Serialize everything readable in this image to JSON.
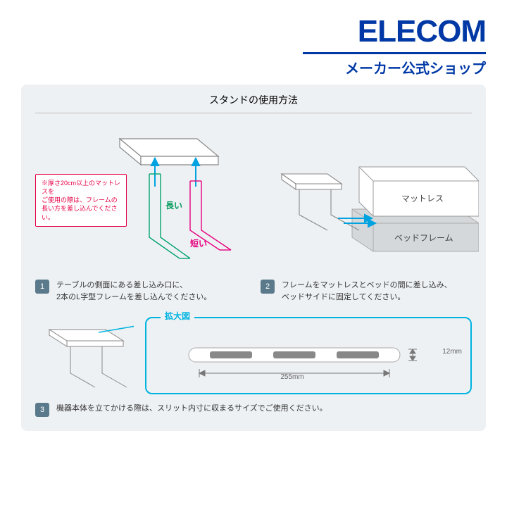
{
  "brand": {
    "name": "ELECOM",
    "tagline": "メーカー公式ショップ",
    "color": "#0039a6"
  },
  "panel": {
    "title": "スタンドの使用方法",
    "bg": "#eef1f4"
  },
  "step1": {
    "num": "1",
    "text": "テーブルの側面にある差し込み口に、\n2本のL字型フレームを差し込んでください。",
    "label_long": "長い",
    "label_long_color": "#009b5a",
    "label_short": "短い",
    "label_short_color": "#e6007e",
    "callout": "※厚さ20cm以上のマットレスを\nご使用の際は、フレームの\n長い方を差し込んでください。",
    "callout_color": "#e50044",
    "arrow_color": "#00a3e0",
    "frame_long_color": "#00a36c",
    "frame_short_color": "#e6007e"
  },
  "step2": {
    "num": "2",
    "text": "フレームをマットレスとベッドの間に差し込み、\nベッドサイドに固定してください。",
    "label_mattress": "マットレス",
    "label_bedframe": "ベッドフレーム",
    "arrow_color": "#00a3e0"
  },
  "step3": {
    "num": "3",
    "text": "機器本体を立てかける際は、スリット内寸に収まるサイズでご使用ください。",
    "expand_label": "拡大図",
    "expand_border": "#00b4e0",
    "dim_w": "255mm",
    "dim_h": "12mm",
    "slit_color": "#888"
  },
  "colors": {
    "badge": "#5a7a8c",
    "line_gray": "#888"
  }
}
